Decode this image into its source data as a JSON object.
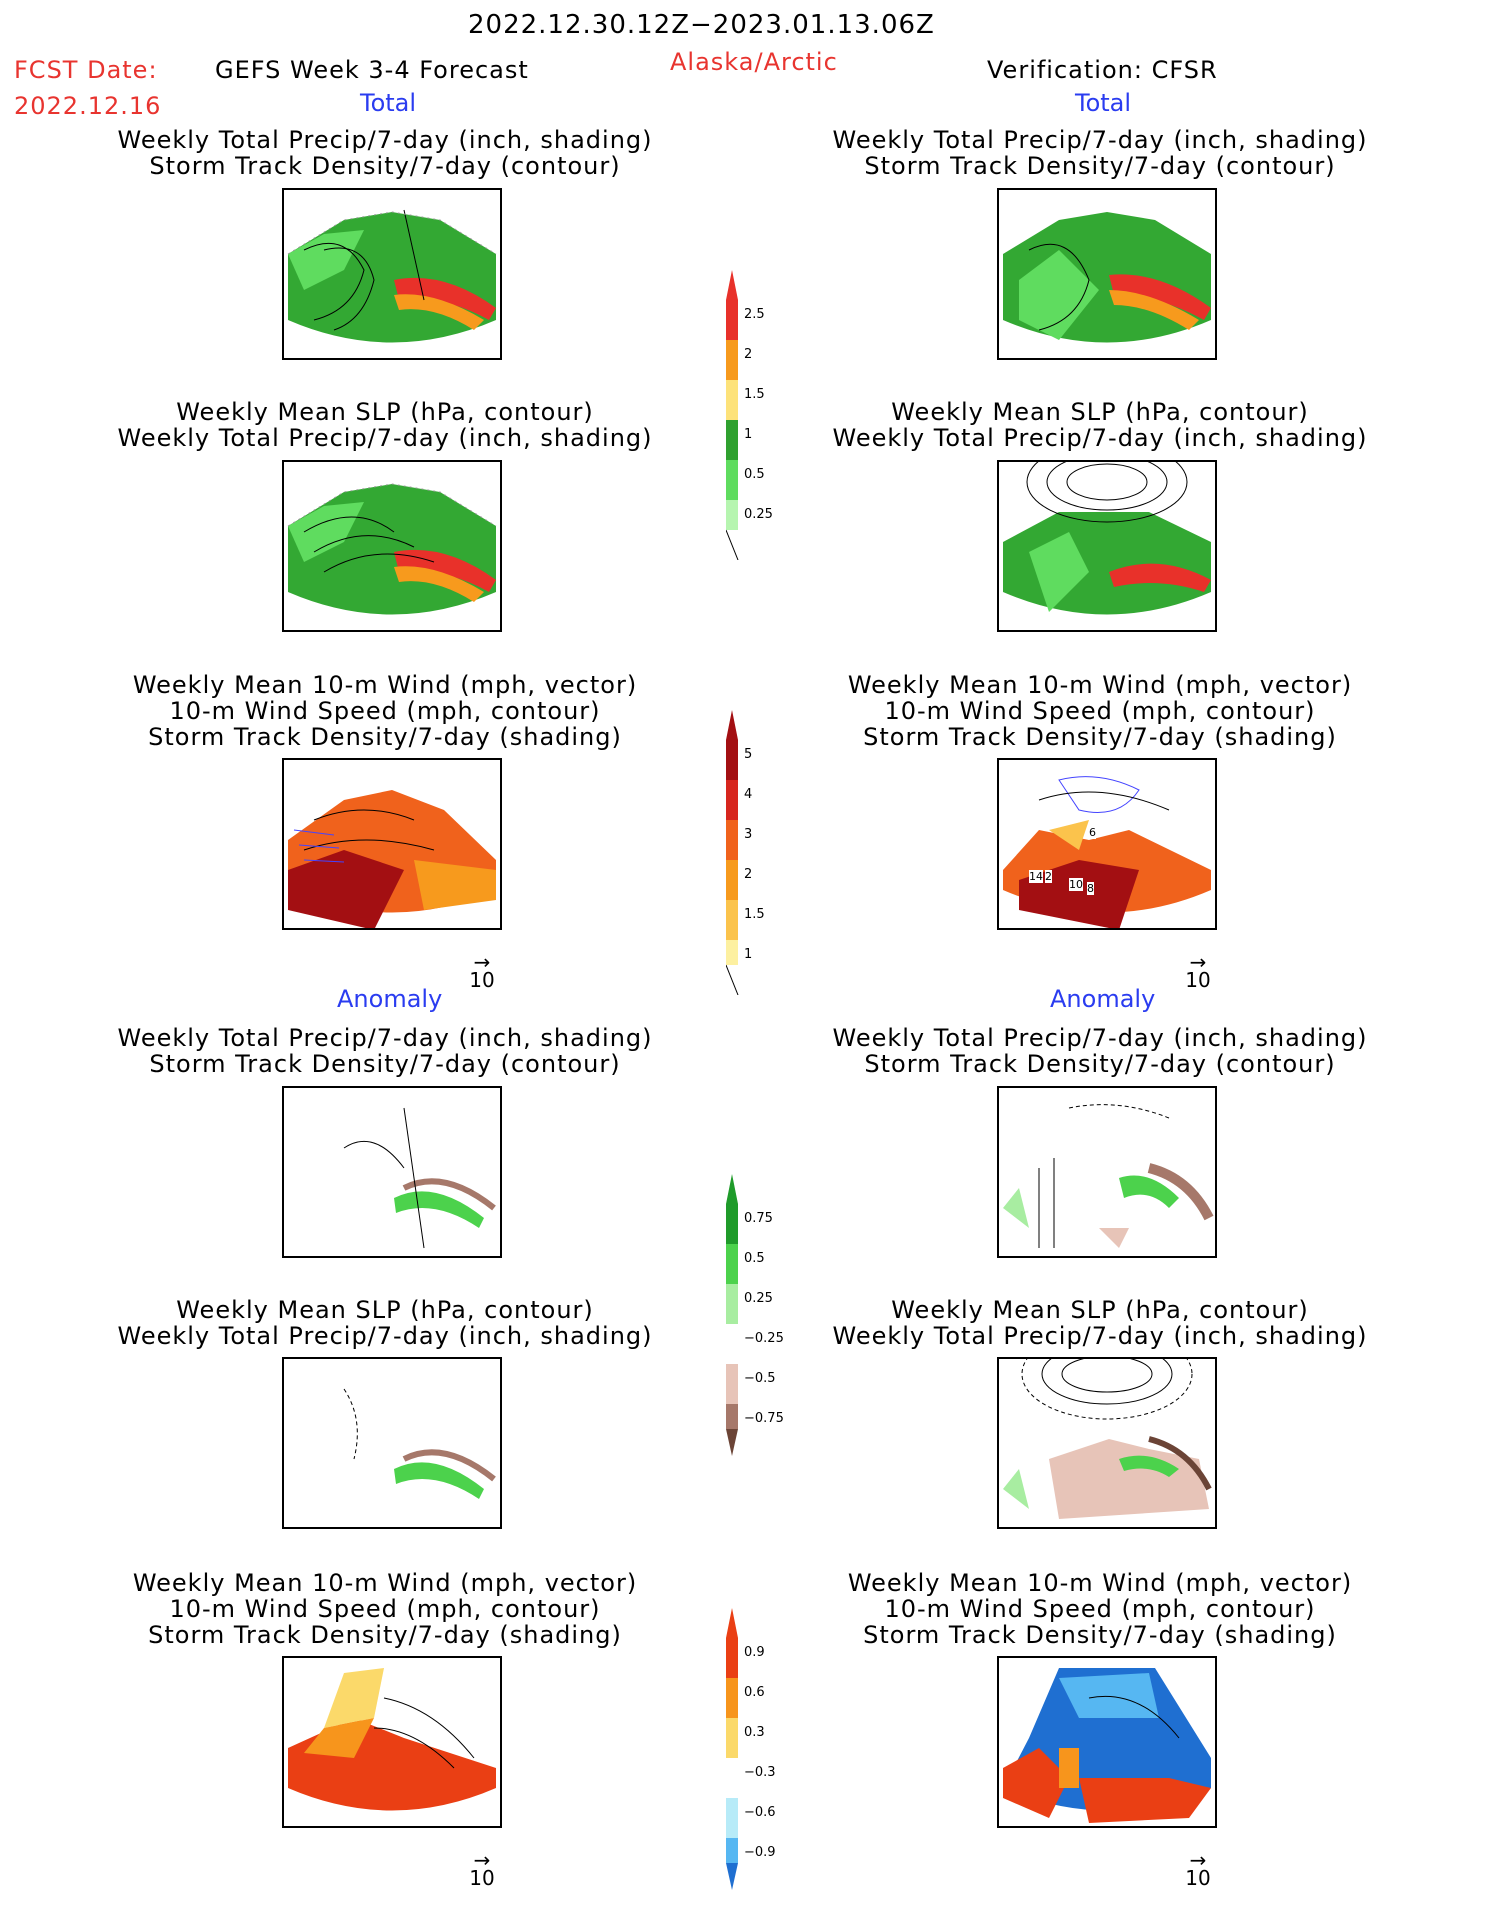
{
  "header": {
    "period": "2022.12.30.12Z−2023.01.13.06Z",
    "fcst_date_label": "FCST Date:",
    "fcst_date_value": "2022.12.16",
    "product": "GEFS Week 3-4 Forecast",
    "region": "Alaska/Arctic",
    "verification": "Verification: CFSR"
  },
  "sections": {
    "total": "Total",
    "anomaly": "Anomaly"
  },
  "titles": {
    "precip_storm": [
      "Weekly Total Precip/7-day (inch, shading)",
      "Storm Track Density/7-day (contour)"
    ],
    "slp_precip": [
      "Weekly Mean SLP (hPa, contour)",
      "Weekly Total Precip/7-day (inch, shading)"
    ],
    "wind_storm": [
      "Weekly Mean 10-m Wind (mph, vector)",
      "10-m Wind Speed (mph, contour)",
      "Storm Track Density/7-day (shading)"
    ]
  },
  "vector_ref": "10",
  "colorbars": {
    "precip_total": {
      "labels": [
        "2.5",
        "2",
        "1.5",
        "1",
        "0.5",
        "0.25"
      ],
      "colors": [
        "#e8312a",
        "#f79a1d",
        "#fde27a",
        "#2fa12f",
        "#5fdc5f",
        "#b6f5b0"
      ]
    },
    "storm_total": {
      "labels": [
        "5",
        "4",
        "3",
        "2",
        "1.5",
        "1"
      ],
      "colors": [
        "#a30f12",
        "#d7261e",
        "#f0621c",
        "#f79a1d",
        "#fbc34c",
        "#fdf0a0"
      ]
    },
    "precip_anom": {
      "labels": [
        "0.75",
        "0.5",
        "0.25",
        "−0.25",
        "−0.5",
        "−0.75"
      ],
      "colors": [
        "#1f9b2a",
        "#4cd24c",
        "#a8eda1",
        "#ffffff",
        "#e7c4b8",
        "#a6786a",
        "#6b4436"
      ]
    },
    "storm_anom": {
      "labels": [
        "0.9",
        "0.6",
        "0.3",
        "−0.3",
        "−0.6",
        "−0.9"
      ],
      "colors": [
        "#ea3f14",
        "#f7951c",
        "#fbd96a",
        "#ffffff",
        "#b7ebf8",
        "#56b7f2",
        "#1f6fd1"
      ]
    }
  },
  "wind_labels": [
    "14",
    "2",
    "10",
    "8",
    "6"
  ]
}
